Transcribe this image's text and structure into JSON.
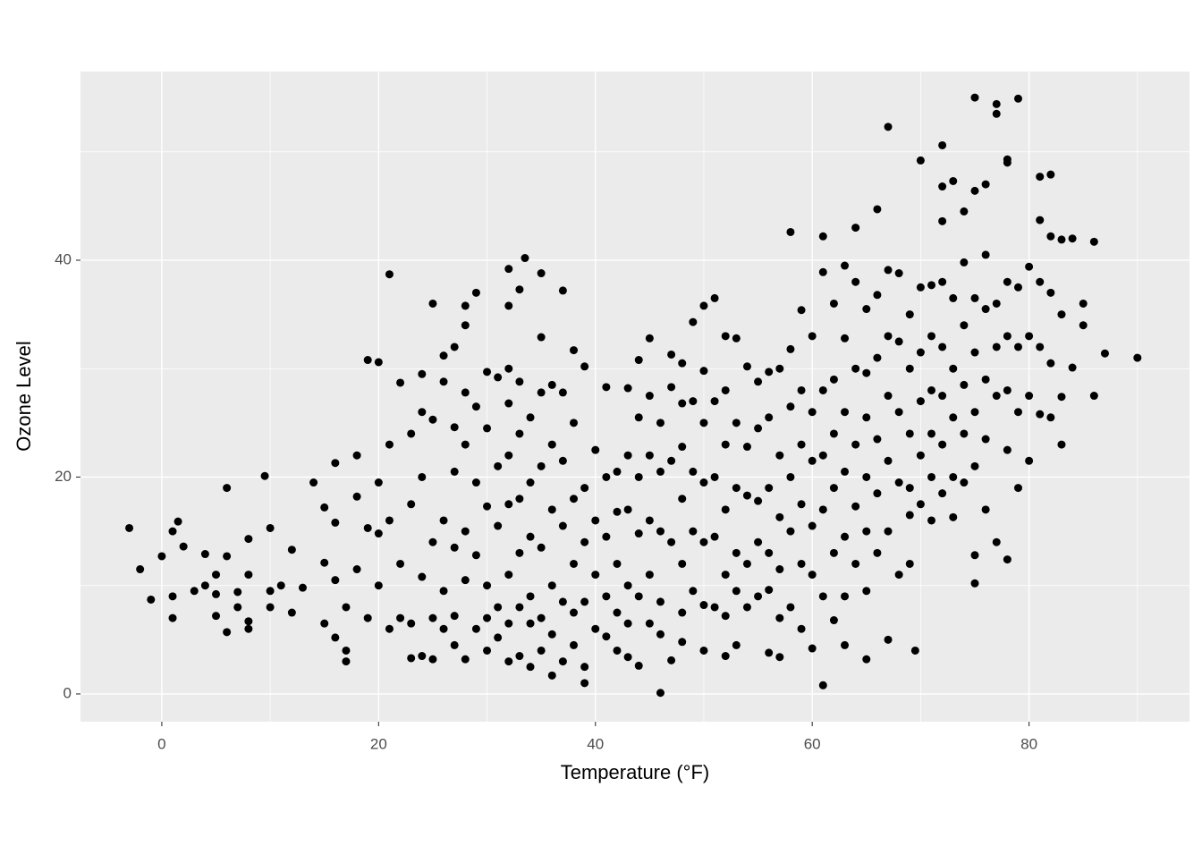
{
  "chart_data": {
    "type": "scatter",
    "x_label": "Temperature (°F)",
    "y_label": "Ozone Level",
    "xlim": [
      -7.5,
      94.8
    ],
    "ylim": [
      -2.56,
      57.4
    ],
    "xticks": [
      0,
      20,
      40,
      60,
      80
    ],
    "yticks": [
      0,
      20,
      40
    ],
    "grid": true,
    "color": "#000000",
    "x": [
      -3,
      -2,
      -1,
      0,
      1,
      1.5,
      1,
      1,
      2,
      3,
      4,
      4,
      5,
      5,
      5,
      6,
      6,
      6,
      7,
      7,
      8,
      8,
      8,
      8,
      9.5,
      10,
      10,
      10,
      11,
      12,
      12,
      13,
      14,
      15,
      15,
      15,
      16,
      16,
      16,
      16,
      17,
      17,
      17,
      18,
      18,
      18,
      19,
      19,
      19,
      20,
      20,
      20,
      20,
      21,
      21,
      21,
      21,
      22,
      22,
      22,
      23,
      23,
      23,
      23,
      24,
      24,
      24,
      24,
      24,
      25,
      25,
      25,
      25,
      25,
      26,
      26,
      26,
      26,
      26,
      27,
      27,
      27,
      27,
      27,
      27,
      28,
      28,
      28,
      28,
      28,
      28,
      28,
      29,
      29,
      29,
      29,
      29,
      30,
      30,
      30,
      30,
      30,
      30,
      31,
      31,
      31,
      31,
      31,
      32,
      32,
      32,
      32,
      32,
      32,
      32,
      32,
      32,
      33,
      33,
      33,
      33,
      33,
      33,
      33,
      33.5,
      34,
      34,
      34,
      34,
      34,
      34,
      35,
      35,
      35,
      35,
      35,
      35,
      35,
      36,
      36,
      36,
      36,
      36,
      36,
      37,
      37,
      37,
      37,
      37,
      37,
      38,
      38,
      38,
      38,
      38,
      38,
      39,
      39,
      39,
      39,
      39,
      39,
      40,
      40,
      40,
      40,
      41,
      41,
      41,
      41,
      41,
      42,
      42,
      42,
      42,
      42,
      43,
      43,
      43,
      43,
      43,
      43,
      44,
      44,
      44,
      44,
      44,
      44,
      45,
      45,
      45,
      45,
      45,
      45,
      46,
      46,
      46,
      46,
      46,
      46,
      47,
      47,
      47,
      47,
      47,
      48,
      48,
      48,
      48,
      48,
      48,
      48,
      49,
      49,
      49,
      49,
      49,
      50,
      50,
      50,
      50,
      50,
      50,
      50,
      51,
      51,
      51,
      51,
      51,
      52,
      52,
      52,
      52,
      52,
      52,
      52,
      53,
      53,
      53,
      53,
      53,
      53,
      54,
      54,
      54,
      54,
      54,
      55,
      55,
      55,
      55,
      55,
      56,
      56,
      56,
      56,
      56,
      56,
      57,
      57,
      57,
      57,
      57,
      57,
      58,
      58,
      58,
      58,
      58,
      58,
      59,
      59,
      59,
      59,
      59,
      59,
      60,
      60,
      60,
      60,
      60,
      60,
      61,
      61,
      61,
      61,
      61,
      61,
      61,
      62,
      62,
      62,
      62,
      62,
      62,
      63,
      63,
      63,
      63,
      63,
      63,
      63,
      64,
      64,
      64,
      64,
      64,
      64,
      65,
      65,
      65,
      65,
      65,
      65,
      65,
      66,
      66,
      66,
      66,
      66,
      66,
      67,
      67,
      67,
      67,
      67,
      67,
      67,
      68,
      68,
      68,
      68,
      68,
      69,
      69,
      69,
      69,
      69,
      69,
      69.5,
      70,
      70,
      70,
      70,
      70,
      70,
      71,
      71,
      71,
      71,
      71,
      71,
      72,
      72,
      72,
      72,
      72,
      72,
      72,
      72,
      73,
      73,
      73,
      73,
      73,
      73,
      74,
      74,
      74,
      74,
      74,
      74,
      75,
      75,
      75,
      75,
      75,
      75,
      75,
      75,
      76,
      76,
      76,
      76,
      76,
      76,
      77,
      77,
      77,
      77,
      77,
      77,
      78,
      78,
      78,
      78,
      78,
      78,
      78,
      79,
      79,
      79,
      79,
      79,
      80,
      80,
      80,
      80,
      81,
      81,
      81,
      81,
      81,
      82,
      82,
      82,
      82,
      82,
      83,
      83,
      83,
      83,
      84,
      84,
      85,
      85,
      86,
      86,
      87,
      90
    ],
    "values": [
      15.3,
      11.5,
      8.7,
      12.7,
      15,
      15.9,
      9,
      7,
      13.6,
      9.5,
      12.9,
      10,
      11,
      9.2,
      7.2,
      19,
      12.7,
      5.7,
      9.4,
      8,
      11,
      6.7,
      6,
      14.3,
      20.1,
      15.3,
      9.5,
      8,
      10,
      13.3,
      7.5,
      9.8,
      19.5,
      17.2,
      12.1,
      6.5,
      21.3,
      15.8,
      10.5,
      5.2,
      8,
      3,
      4,
      22,
      18.2,
      11.5,
      30.8,
      15.3,
      7,
      30.6,
      19.5,
      14.8,
      10,
      38.7,
      23,
      16,
      6,
      28.7,
      12,
      7,
      24,
      17.5,
      6.5,
      3.3,
      29.5,
      26,
      20,
      10.8,
      3.5,
      36,
      25.3,
      14,
      7,
      3.2,
      31.2,
      28.8,
      16,
      9.5,
      6,
      32,
      24.6,
      20.5,
      13.5,
      7.2,
      4.5,
      35.8,
      34,
      27.8,
      23,
      15,
      10.5,
      3.2,
      37,
      26.5,
      19.5,
      12.8,
      6,
      29.7,
      24.5,
      17.3,
      10,
      7,
      4,
      29.2,
      21,
      15.5,
      8,
      5.2,
      39.2,
      35.8,
      30,
      26.8,
      22,
      17.5,
      11,
      6.5,
      3,
      37.3,
      28.8,
      24,
      18,
      13,
      8,
      3.5,
      40.2,
      25.5,
      19.5,
      14.5,
      9,
      6.5,
      2.5,
      38.8,
      32.9,
      27.8,
      21,
      13.5,
      7,
      4,
      28.5,
      23,
      17,
      10,
      5.5,
      1.7,
      37.2,
      27.8,
      21.5,
      15.5,
      8.5,
      3,
      31.7,
      25,
      18,
      12,
      7.5,
      4.5,
      30.2,
      19,
      14,
      8.5,
      2.5,
      1,
      22.5,
      16,
      11,
      6,
      28.3,
      20,
      14.5,
      9,
      5.3,
      20.5,
      16.8,
      12,
      7.5,
      4,
      28.2,
      22,
      17,
      10,
      6.5,
      3.4,
      30.8,
      25.5,
      20,
      14.8,
      9,
      2.6,
      32.8,
      27.5,
      22,
      16,
      11,
      6.5,
      25,
      20.5,
      15,
      8.5,
      5.5,
      0.1,
      31.3,
      28.3,
      21.5,
      14,
      3.1,
      30.5,
      26.8,
      22.8,
      18,
      12,
      7.5,
      4.8,
      34.3,
      27,
      20.5,
      15,
      9.5,
      35.8,
      29.8,
      25,
      19.5,
      14,
      8.2,
      4,
      36.5,
      27,
      20,
      14.5,
      8,
      33,
      28,
      23,
      17,
      11,
      7.2,
      3.5,
      32.8,
      25,
      19,
      13,
      9.5,
      4.5,
      30.2,
      22.8,
      18.3,
      12,
      8,
      28.8,
      24.5,
      17.8,
      14,
      9,
      29.7,
      25.5,
      19,
      13,
      9.6,
      3.8,
      30,
      22,
      16.3,
      11.5,
      7,
      3.4,
      42.6,
      31.8,
      26.5,
      20,
      15,
      8,
      35.4,
      28,
      23,
      17.5,
      12,
      6,
      33,
      26,
      21.5,
      15.5,
      11,
      4.2,
      42.2,
      38.9,
      28,
      22,
      17,
      9,
      0.8,
      36,
      29,
      24,
      19,
      13,
      6.8,
      39.5,
      32.8,
      26,
      20.5,
      14.5,
      9,
      4.5,
      43,
      38,
      30,
      23,
      17.3,
      12,
      35.5,
      29.6,
      25.5,
      20,
      15,
      9.5,
      3.2,
      44.7,
      36.8,
      31,
      23.5,
      18.5,
      13,
      52.3,
      39.1,
      33,
      27.5,
      21.5,
      15,
      5,
      38.8,
      32.5,
      26,
      19.5,
      11,
      35,
      30,
      24,
      19,
      16.5,
      12,
      4,
      49.2,
      37.5,
      31.5,
      27,
      22,
      17.5,
      37.7,
      33,
      28,
      24,
      20,
      16,
      50.6,
      46.8,
      43.6,
      38,
      32,
      27.5,
      23,
      18.5,
      47.3,
      36.5,
      30,
      25.5,
      20,
      16.3,
      44.5,
      39.8,
      34,
      28.5,
      24,
      19.5,
      55,
      46.4,
      36.5,
      31.5,
      26,
      21,
      12.8,
      10.2,
      47,
      40.5,
      35.5,
      29,
      23.5,
      17,
      54.4,
      53.5,
      36,
      32,
      27.5,
      14,
      49.3,
      49,
      38,
      33,
      28,
      22.5,
      12.4,
      54.9,
      37.5,
      32,
      26,
      19,
      39.4,
      33,
      27.5,
      21.5,
      47.7,
      43.7,
      38,
      32,
      25.8,
      47.9,
      42.2,
      37,
      30.5,
      25.5,
      41.9,
      35,
      27.4,
      23,
      42,
      30.1,
      36,
      34,
      41.7,
      27.5,
      31.4,
      31
    ]
  }
}
